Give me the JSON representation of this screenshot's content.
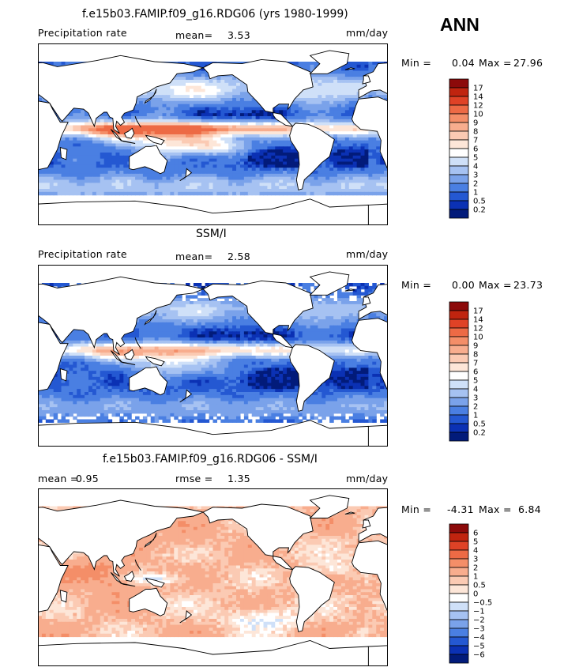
{
  "season_label": "ANN",
  "chart_data": [
    {
      "type": "heatmap",
      "title": "f.e15b03.FAMIP.f09_g16.RDG06 (yrs 1980-1999)",
      "field_label": "Precipitation rate",
      "stat1_label": "mean=",
      "stat1_value": "3.53",
      "stat2_label": "",
      "stat2_value": "",
      "units": "mm/day",
      "min_label": "Min =",
      "min_value": "0.04",
      "max_label": "Max =",
      "max_value": "27.96",
      "colorbar_levels": [
        "17",
        "14",
        "12",
        "10",
        "9",
        "8",
        "7",
        "6",
        "5",
        "4",
        "3",
        "2",
        "1",
        "0.5",
        "0.2"
      ],
      "colorbar_colors": [
        "#8c0a0a",
        "#c0240f",
        "#df4226",
        "#ed6a45",
        "#f48e68",
        "#f8ad8e",
        "#fbcab3",
        "#fde6d8",
        "#ffffff",
        "#cfe0f8",
        "#a6c2f2",
        "#7aa2ea",
        "#4a7fe2",
        "#2458d2",
        "#0b31b4",
        "#021b7a"
      ]
    },
    {
      "type": "heatmap",
      "title": "SSM/I",
      "field_label": "Precipitation rate",
      "stat1_label": "mean=",
      "stat1_value": "2.58",
      "stat2_label": "",
      "stat2_value": "",
      "units": "mm/day",
      "min_label": "Min =",
      "min_value": "0.00",
      "max_label": "Max =",
      "max_value": "23.73",
      "colorbar_levels": [
        "17",
        "14",
        "12",
        "10",
        "9",
        "8",
        "7",
        "6",
        "5",
        "4",
        "3",
        "2",
        "1",
        "0.5",
        "0.2"
      ],
      "colorbar_colors": [
        "#8c0a0a",
        "#c0240f",
        "#df4226",
        "#ed6a45",
        "#f48e68",
        "#f8ad8e",
        "#fbcab3",
        "#fde6d8",
        "#ffffff",
        "#cfe0f8",
        "#a6c2f2",
        "#7aa2ea",
        "#4a7fe2",
        "#2458d2",
        "#0b31b4",
        "#021b7a"
      ]
    },
    {
      "type": "heatmap",
      "title": "f.e15b03.FAMIP.f09_g16.RDG06 - SSM/I",
      "field_label": "",
      "stat1_label": "mean =",
      "stat1_value": "0.95",
      "stat2_label": "rmse =",
      "stat2_value": "1.35",
      "units": "mm/day",
      "min_label": "Min =",
      "min_value": "-4.31",
      "max_label": "Max =",
      "max_value": "6.84",
      "colorbar_levels": [
        "6",
        "5",
        "4",
        "3",
        "2",
        "1",
        "0.5",
        "0",
        "−0.5",
        "−1",
        "−2",
        "−3",
        "−4",
        "−5",
        "−6"
      ],
      "colorbar_colors": [
        "#8c0a0a",
        "#c0240f",
        "#df4226",
        "#ed6a45",
        "#f48e68",
        "#f8ad8e",
        "#fbcab3",
        "#fde6d8",
        "#ffffff",
        "#cfe0f8",
        "#a6c2f2",
        "#7aa2ea",
        "#4a7fe2",
        "#2458d2",
        "#0b31b4",
        "#021b7a"
      ]
    }
  ]
}
